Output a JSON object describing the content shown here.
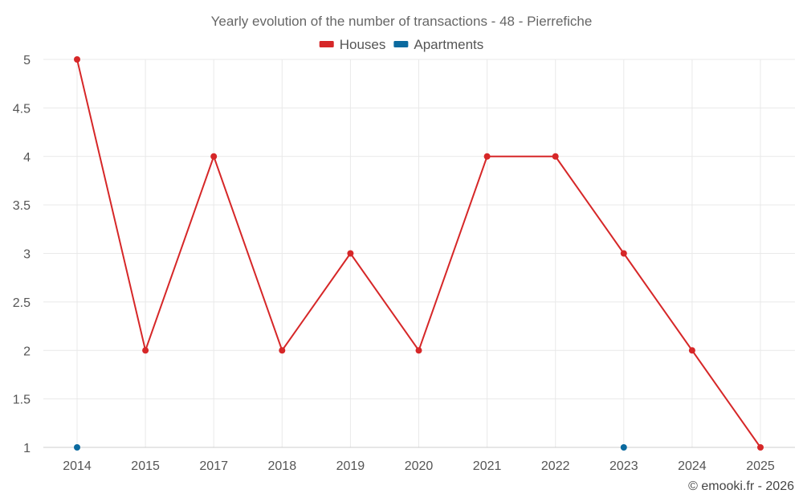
{
  "chart_data": {
    "type": "line",
    "title": "Yearly evolution of the number of transactions - 48 - Pierrefiche",
    "xlabel": "",
    "ylabel": "",
    "categories": [
      "2014",
      "2015",
      "2017",
      "2018",
      "2019",
      "2020",
      "2021",
      "2022",
      "2023",
      "2024",
      "2025"
    ],
    "ylim": [
      1,
      5
    ],
    "yticks": [
      1,
      1.5,
      2,
      2.5,
      3,
      3.5,
      4,
      4.5,
      5
    ],
    "ytick_labels": [
      "1",
      "1.5",
      "2",
      "2.5",
      "3",
      "3.5",
      "4",
      "4.5",
      "5"
    ],
    "grid": true,
    "legend_position": "top-center",
    "series": [
      {
        "name": "Houses",
        "color": "#d62728",
        "values": [
          5,
          2,
          4,
          2,
          3,
          2,
          4,
          4,
          3,
          2,
          1
        ]
      },
      {
        "name": "Apartments",
        "color": "#0b6a9f",
        "values": [
          1,
          null,
          null,
          null,
          null,
          null,
          null,
          null,
          1,
          null,
          null
        ]
      }
    ]
  },
  "credit": "© emooki.fr - 2026"
}
